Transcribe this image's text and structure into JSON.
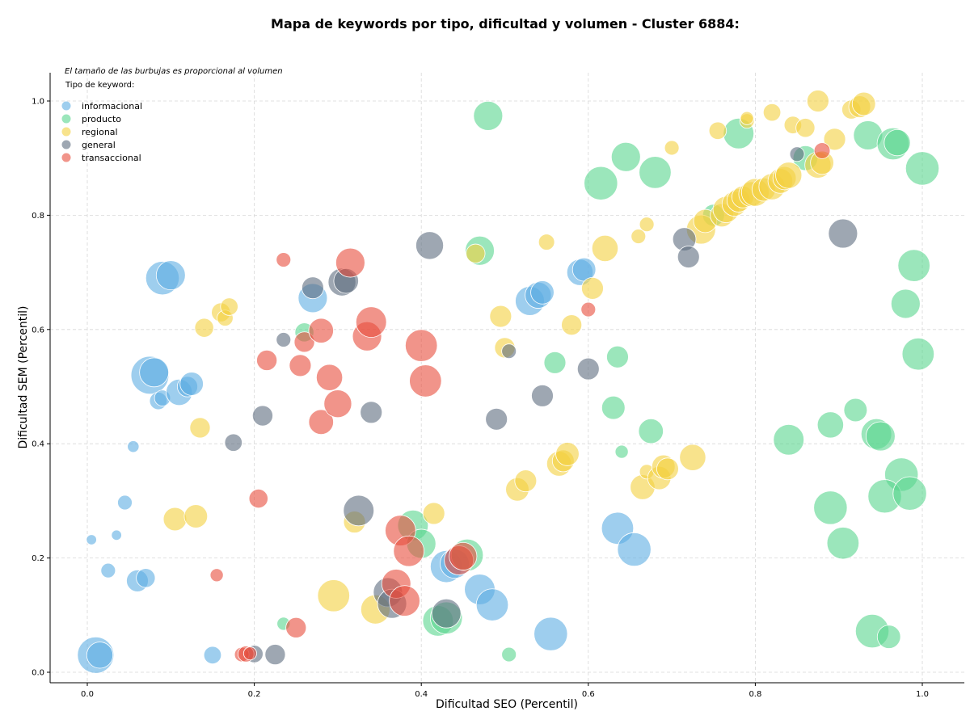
{
  "chart_data": {
    "type": "scatter",
    "title": "Mapa de keywords por tipo, dificultad y volumen - Cluster 6884:",
    "xlabel": "Dificultad SEO (Percentil)",
    "ylabel": "Dificultad SEM (Percentil)",
    "xlim": [
      -0.045,
      1.045
    ],
    "ylim": [
      -0.02,
      1.05
    ],
    "xticks": [
      "0.0",
      "0.2",
      "0.4",
      "0.6",
      "0.8",
      "1.0"
    ],
    "yticks": [
      "0.0",
      "0.2",
      "0.4",
      "0.6",
      "0.8",
      "1.0"
    ],
    "grid": true,
    "legend_placement": "top-left",
    "note": "El tamaño de las burbujas es proporcional al volumen",
    "legend_title": "Tipo de keyword:",
    "series": [
      {
        "name": "informacional",
        "color": "#5DADE2",
        "points": [
          [
            0.09,
            0.69,
            2.3
          ],
          [
            0.1,
            0.695,
            2.0
          ],
          [
            0.075,
            0.52,
            2.6
          ],
          [
            0.08,
            0.525,
            2.0
          ],
          [
            0.085,
            0.475,
            1.2
          ],
          [
            0.09,
            0.48,
            1.1
          ],
          [
            0.11,
            0.49,
            1.8
          ],
          [
            0.12,
            0.5,
            1.4
          ],
          [
            0.125,
            0.505,
            1.6
          ],
          [
            0.055,
            0.395,
            0.8
          ],
          [
            0.045,
            0.297,
            1.0
          ],
          [
            0.035,
            0.24,
            0.7
          ],
          [
            0.005,
            0.232,
            0.7
          ],
          [
            0.025,
            0.178,
            1.0
          ],
          [
            0.06,
            0.16,
            1.5
          ],
          [
            0.07,
            0.165,
            1.3
          ],
          [
            0.01,
            0.03,
            2.5
          ],
          [
            0.015,
            0.03,
            1.8
          ],
          [
            0.15,
            0.03,
            1.2
          ],
          [
            0.27,
            0.655,
            2.0
          ],
          [
            0.43,
            0.185,
            2.2
          ],
          [
            0.44,
            0.19,
            2.0
          ],
          [
            0.47,
            0.145,
            2.1
          ],
          [
            0.485,
            0.118,
            2.2
          ],
          [
            0.53,
            0.65,
            2.0
          ],
          [
            0.54,
            0.66,
            1.8
          ],
          [
            0.545,
            0.665,
            1.6
          ],
          [
            0.59,
            0.7,
            1.8
          ],
          [
            0.595,
            0.705,
            1.6
          ],
          [
            0.555,
            0.067,
            2.3
          ],
          [
            0.635,
            0.252,
            2.2
          ],
          [
            0.655,
            0.215,
            2.3
          ]
        ]
      },
      {
        "name": "producto",
        "color": "#58D68D",
        "points": [
          [
            0.48,
            0.974,
            2.0
          ],
          [
            0.47,
            0.738,
            2.0
          ],
          [
            0.26,
            0.595,
            1.3
          ],
          [
            0.39,
            0.257,
            2.1
          ],
          [
            0.4,
            0.225,
            2.0
          ],
          [
            0.42,
            0.09,
            2.1
          ],
          [
            0.43,
            0.095,
            2.2
          ],
          [
            0.455,
            0.205,
            2.2
          ],
          [
            0.505,
            0.031,
            1.0
          ],
          [
            0.235,
            0.085,
            0.9
          ],
          [
            0.56,
            0.542,
            1.5
          ],
          [
            0.615,
            0.856,
            2.3
          ],
          [
            0.645,
            0.902,
            2.0
          ],
          [
            0.68,
            0.875,
            2.2
          ],
          [
            0.635,
            0.552,
            1.5
          ],
          [
            0.63,
            0.463,
            1.6
          ],
          [
            0.64,
            0.386,
            0.9
          ],
          [
            0.675,
            0.422,
            1.7
          ],
          [
            0.75,
            0.8,
            1.5
          ],
          [
            0.78,
            0.943,
            2.1
          ],
          [
            0.86,
            0.9,
            1.7
          ],
          [
            0.935,
            0.94,
            2.0
          ],
          [
            0.965,
            0.925,
            2.2
          ],
          [
            0.97,
            0.927,
            1.8
          ],
          [
            1.0,
            0.882,
            2.3
          ],
          [
            0.99,
            0.712,
            2.2
          ],
          [
            0.98,
            0.645,
            2.0
          ],
          [
            0.995,
            0.557,
            2.2
          ],
          [
            0.84,
            0.407,
            2.1
          ],
          [
            0.89,
            0.433,
            1.8
          ],
          [
            0.92,
            0.459,
            1.6
          ],
          [
            0.945,
            0.417,
            2.1
          ],
          [
            0.95,
            0.413,
            2.0
          ],
          [
            0.975,
            0.346,
            2.3
          ],
          [
            0.955,
            0.308,
            2.3
          ],
          [
            0.985,
            0.313,
            2.3
          ],
          [
            0.89,
            0.288,
            2.3
          ],
          [
            0.905,
            0.226,
            2.2
          ],
          [
            0.94,
            0.072,
            2.3
          ],
          [
            0.96,
            0.062,
            1.6
          ]
        ]
      },
      {
        "name": "regional",
        "color": "#F4D03F",
        "points": [
          [
            0.14,
            0.603,
            1.3
          ],
          [
            0.16,
            0.63,
            1.3
          ],
          [
            0.165,
            0.62,
            1.1
          ],
          [
            0.17,
            0.64,
            1.2
          ],
          [
            0.135,
            0.428,
            1.4
          ],
          [
            0.105,
            0.268,
            1.6
          ],
          [
            0.13,
            0.273,
            1.6
          ],
          [
            0.295,
            0.134,
            2.2
          ],
          [
            0.32,
            0.263,
            1.5
          ],
          [
            0.345,
            0.11,
            2.0
          ],
          [
            0.415,
            0.278,
            1.5
          ],
          [
            0.465,
            0.733,
            1.3
          ],
          [
            0.495,
            0.623,
            1.5
          ],
          [
            0.5,
            0.568,
            1.4
          ],
          [
            0.515,
            0.32,
            1.6
          ],
          [
            0.525,
            0.335,
            1.5
          ],
          [
            0.55,
            0.753,
            1.1
          ],
          [
            0.565,
            0.365,
            1.7
          ],
          [
            0.57,
            0.37,
            1.5
          ],
          [
            0.575,
            0.382,
            1.6
          ],
          [
            0.58,
            0.608,
            1.4
          ],
          [
            0.605,
            0.672,
            1.5
          ],
          [
            0.62,
            0.742,
            1.8
          ],
          [
            0.66,
            0.763,
            1.0
          ],
          [
            0.665,
            0.324,
            1.7
          ],
          [
            0.67,
            0.351,
            1.0
          ],
          [
            0.67,
            0.784,
            1.0
          ],
          [
            0.685,
            0.34,
            1.6
          ],
          [
            0.69,
            0.36,
            1.6
          ],
          [
            0.695,
            0.356,
            1.5
          ],
          [
            0.7,
            0.918,
            1.0
          ],
          [
            0.725,
            0.376,
            1.8
          ],
          [
            0.735,
            0.775,
            2.0
          ],
          [
            0.74,
            0.79,
            1.6
          ],
          [
            0.755,
            0.948,
            1.2
          ],
          [
            0.76,
            0.8,
            1.6
          ],
          [
            0.765,
            0.81,
            1.8
          ],
          [
            0.775,
            0.82,
            1.7
          ],
          [
            0.78,
            0.826,
            1.6
          ],
          [
            0.785,
            0.832,
            1.5
          ],
          [
            0.79,
            0.965,
            1.0
          ],
          [
            0.79,
            0.97,
            0.9
          ],
          [
            0.795,
            0.837,
            1.7
          ],
          [
            0.8,
            0.84,
            1.9
          ],
          [
            0.81,
            0.845,
            1.6
          ],
          [
            0.82,
            0.85,
            1.8
          ],
          [
            0.82,
            0.98,
            1.2
          ],
          [
            0.83,
            0.86,
            1.7
          ],
          [
            0.835,
            0.865,
            1.6
          ],
          [
            0.84,
            0.87,
            1.8
          ],
          [
            0.845,
            0.958,
            1.2
          ],
          [
            0.86,
            0.953,
            1.3
          ],
          [
            0.875,
            0.888,
            1.8
          ],
          [
            0.88,
            0.892,
            1.6
          ],
          [
            0.875,
            1.0,
            1.5
          ],
          [
            0.895,
            0.933,
            1.5
          ],
          [
            0.915,
            0.985,
            1.3
          ],
          [
            0.925,
            0.99,
            1.5
          ],
          [
            0.93,
            0.995,
            1.6
          ]
        ]
      },
      {
        "name": "general",
        "color": "#5D6D7E",
        "points": [
          [
            0.175,
            0.402,
            1.2
          ],
          [
            0.21,
            0.449,
            1.4
          ],
          [
            0.235,
            0.582,
            1.0
          ],
          [
            0.27,
            0.673,
            1.5
          ],
          [
            0.305,
            0.683,
            1.9
          ],
          [
            0.31,
            0.685,
            1.7
          ],
          [
            0.325,
            0.283,
            2.1
          ],
          [
            0.34,
            0.455,
            1.5
          ],
          [
            0.2,
            0.032,
            1.2
          ],
          [
            0.225,
            0.031,
            1.4
          ],
          [
            0.36,
            0.14,
            2.0
          ],
          [
            0.365,
            0.12,
            2.0
          ],
          [
            0.41,
            0.747,
            1.9
          ],
          [
            0.43,
            0.103,
            2.0
          ],
          [
            0.49,
            0.443,
            1.5
          ],
          [
            0.505,
            0.562,
            1.0
          ],
          [
            0.545,
            0.484,
            1.5
          ],
          [
            0.6,
            0.531,
            1.5
          ],
          [
            0.715,
            0.758,
            1.6
          ],
          [
            0.72,
            0.727,
            1.5
          ],
          [
            0.85,
            0.907,
            1.0
          ],
          [
            0.905,
            0.768,
            2.0
          ]
        ]
      },
      {
        "name": "transaccional",
        "color": "#E74C3C",
        "points": [
          [
            0.155,
            0.17,
            0.9
          ],
          [
            0.205,
            0.304,
            1.3
          ],
          [
            0.215,
            0.546,
            1.4
          ],
          [
            0.235,
            0.722,
            1.0
          ],
          [
            0.25,
            0.078,
            1.4
          ],
          [
            0.255,
            0.537,
            1.5
          ],
          [
            0.26,
            0.578,
            1.4
          ],
          [
            0.28,
            0.598,
            1.7
          ],
          [
            0.28,
            0.438,
            1.7
          ],
          [
            0.29,
            0.516,
            1.8
          ],
          [
            0.3,
            0.47,
            1.9
          ],
          [
            0.315,
            0.717,
            2.0
          ],
          [
            0.335,
            0.588,
            2.0
          ],
          [
            0.34,
            0.613,
            2.1
          ],
          [
            0.185,
            0.031,
            1.0
          ],
          [
            0.19,
            0.032,
            1.1
          ],
          [
            0.195,
            0.033,
            0.9
          ],
          [
            0.37,
            0.155,
            2.0
          ],
          [
            0.375,
            0.248,
            2.1
          ],
          [
            0.38,
            0.125,
            2.1
          ],
          [
            0.385,
            0.212,
            2.1
          ],
          [
            0.4,
            0.572,
            2.2
          ],
          [
            0.405,
            0.51,
            2.2
          ],
          [
            0.445,
            0.196,
            2.0
          ],
          [
            0.45,
            0.203,
            1.9
          ],
          [
            0.6,
            0.635,
            1.0
          ],
          [
            0.88,
            0.913,
            1.1
          ]
        ]
      }
    ]
  }
}
